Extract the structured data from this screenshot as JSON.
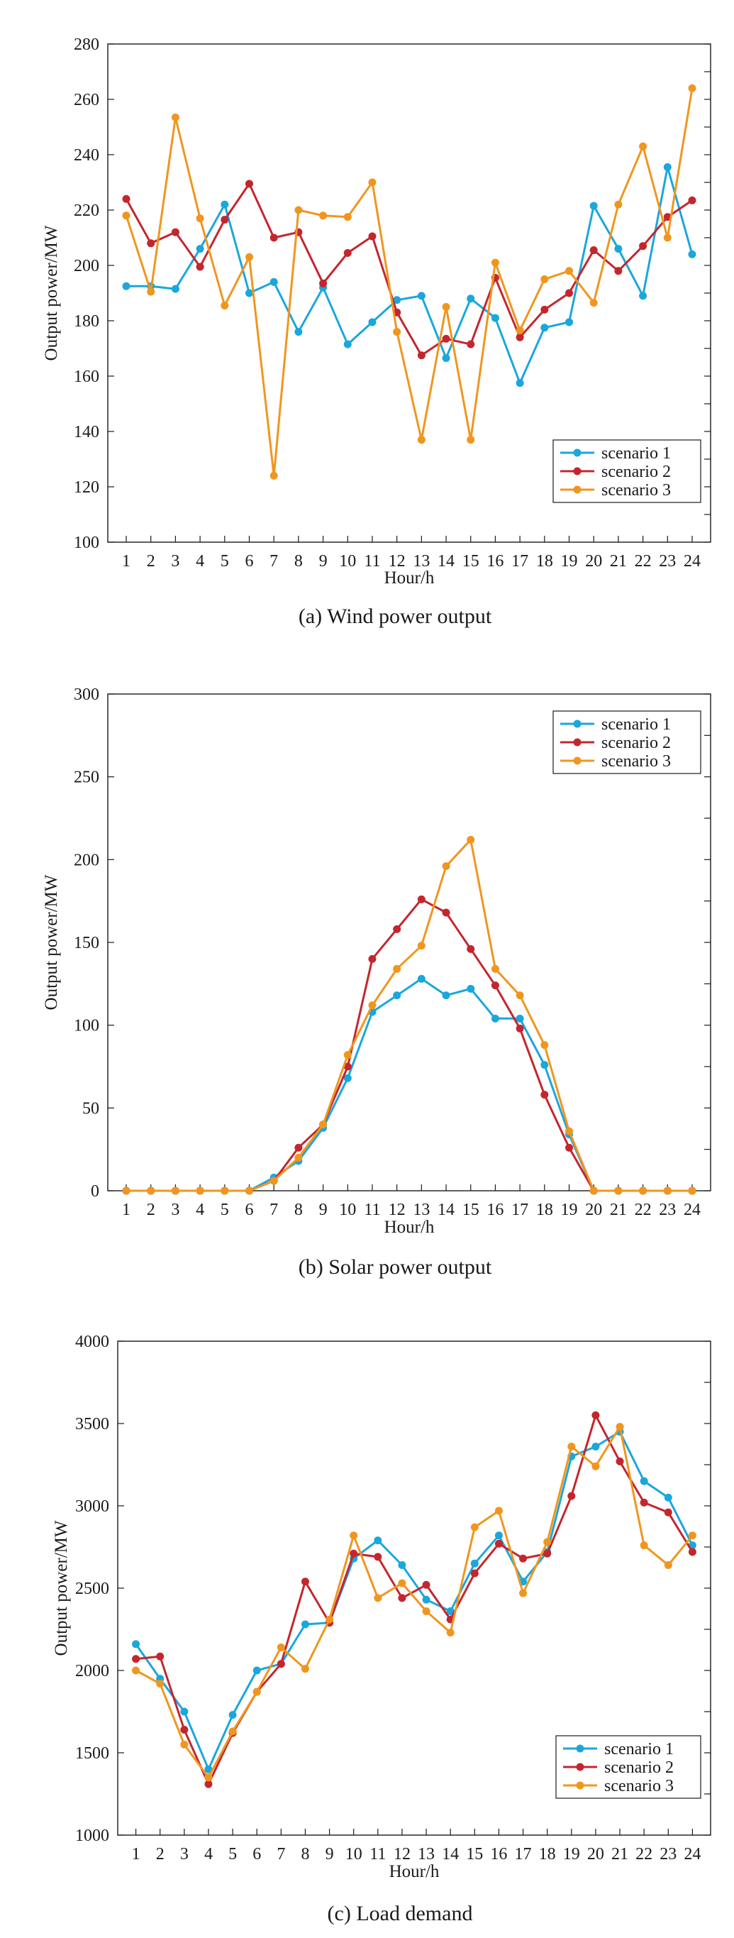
{
  "figure": {
    "colors": {
      "scenario 1": "#1aa7dc",
      "scenario 2": "#c4262e",
      "scenario 3": "#f0961e"
    }
  },
  "chart_data": [
    {
      "type": "line",
      "title": "(a) Wind power output",
      "xlabel": "Hour/h",
      "ylabel": "Output power/MW",
      "ylim": [
        100,
        280
      ],
      "yticks": [
        100,
        120,
        140,
        160,
        180,
        200,
        220,
        240,
        260,
        280
      ],
      "x": [
        1,
        2,
        3,
        4,
        5,
        6,
        7,
        8,
        9,
        10,
        11,
        12,
        13,
        14,
        15,
        16,
        17,
        18,
        19,
        20,
        21,
        22,
        23,
        24
      ],
      "legend_position": "bottom-right",
      "series": [
        {
          "name": "scenario 1",
          "values": [
            192.5,
            192.5,
            191.5,
            206,
            222,
            190,
            194,
            176,
            192,
            171.5,
            179.5,
            187.5,
            189,
            166.5,
            188,
            181,
            157.5,
            177.5,
            179.5,
            221.5,
            206,
            189,
            235.5,
            204
          ]
        },
        {
          "name": "scenario 2",
          "values": [
            224,
            208,
            212,
            199.5,
            216.5,
            229.5,
            210,
            212,
            193.5,
            204.5,
            210.5,
            183,
            167.5,
            173.5,
            171.5,
            195.5,
            174,
            184,
            190,
            205.5,
            198,
            207,
            217.5,
            223.5
          ]
        },
        {
          "name": "scenario 3",
          "values": [
            218,
            190.5,
            253.5,
            217,
            185.5,
            203,
            124,
            220,
            218,
            217.5,
            230,
            176,
            137,
            185,
            137,
            201,
            176.5,
            195,
            198,
            186.5,
            222,
            243,
            210,
            264
          ]
        }
      ]
    },
    {
      "type": "line",
      "title": "(b) Solar power output",
      "xlabel": "Hour/h",
      "ylabel": "Output power/MW",
      "ylim": [
        0,
        300
      ],
      "yticks": [
        0,
        50,
        100,
        150,
        200,
        250,
        300
      ],
      "x": [
        1,
        2,
        3,
        4,
        5,
        6,
        7,
        8,
        9,
        10,
        11,
        12,
        13,
        14,
        15,
        16,
        17,
        18,
        19,
        20,
        21,
        22,
        23,
        24
      ],
      "legend_position": "top-right",
      "series": [
        {
          "name": "scenario 1",
          "values": [
            0,
            0,
            0,
            0,
            0,
            0,
            8,
            18,
            38,
            68,
            108,
            118,
            128,
            118,
            122,
            104,
            104,
            76,
            34,
            0,
            0,
            0,
            0,
            0
          ]
        },
        {
          "name": "scenario 2",
          "values": [
            0,
            0,
            0,
            0,
            0,
            0,
            6,
            26,
            40,
            75,
            140,
            158,
            176,
            168,
            146,
            124,
            98,
            58,
            26,
            0,
            0,
            0,
            0,
            0
          ]
        },
        {
          "name": "scenario 3",
          "values": [
            0,
            0,
            0,
            0,
            0,
            0,
            6,
            20,
            40,
            82,
            112,
            134,
            148,
            196,
            212,
            134,
            118,
            88,
            36,
            0,
            0,
            0,
            0,
            0
          ]
        }
      ]
    },
    {
      "type": "line",
      "title": "(c) Load demand",
      "xlabel": "Hour/h",
      "ylabel": "Output power/MW",
      "ylim": [
        1000,
        4000
      ],
      "yticks": [
        1000,
        1500,
        2000,
        2500,
        3000,
        3500,
        4000
      ],
      "x": [
        1,
        2,
        3,
        4,
        5,
        6,
        7,
        8,
        9,
        10,
        11,
        12,
        13,
        14,
        15,
        16,
        17,
        18,
        19,
        20,
        21,
        22,
        23,
        24
      ],
      "legend_position": "bottom-right",
      "series": [
        {
          "name": "scenario 1",
          "values": [
            2160,
            1950,
            1750,
            1400,
            1730,
            2000,
            2040,
            2280,
            2290,
            2680,
            2790,
            2640,
            2430,
            2360,
            2650,
            2820,
            2540,
            2720,
            3300,
            3360,
            3450,
            3150,
            3050,
            2760
          ]
        },
        {
          "name": "scenario 2",
          "values": [
            2070,
            2085,
            1640,
            1310,
            1620,
            1870,
            2040,
            2540,
            2290,
            2710,
            2690,
            2440,
            2520,
            2310,
            2590,
            2770,
            2680,
            2710,
            3060,
            3550,
            3270,
            3020,
            2960,
            2720
          ]
        },
        {
          "name": "scenario 3",
          "values": [
            2000,
            1920,
            1550,
            1350,
            1630,
            1870,
            2140,
            2010,
            2310,
            2820,
            2440,
            2530,
            2360,
            2230,
            2870,
            2970,
            2470,
            2780,
            3360,
            3240,
            3480,
            2760,
            2640,
            2820
          ]
        }
      ]
    }
  ]
}
